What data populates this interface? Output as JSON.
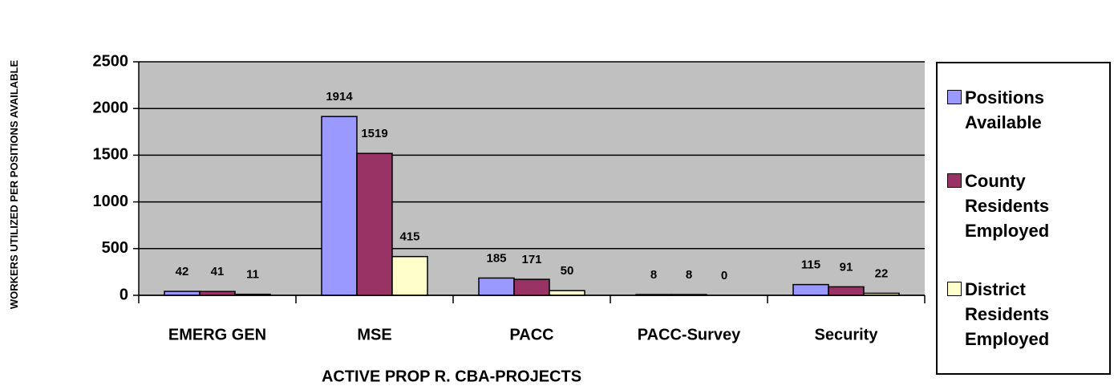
{
  "chart_data": {
    "type": "bar",
    "y_label": "WORKERS UTILIZED PER POSITIONS AVAILABLE",
    "x_label": "ACTIVE PROP R. CBA-PROJECTS",
    "categories": [
      "EMERG GEN",
      "MSE",
      "PACC",
      "PACC-Survey",
      "Security"
    ],
    "series": [
      {
        "name": "Positions Available",
        "color": "#9999ff",
        "values": [
          42,
          1914,
          185,
          8,
          115
        ]
      },
      {
        "name": "County Residents Employed",
        "color": "#993366",
        "values": [
          41,
          1519,
          171,
          8,
          91
        ]
      },
      {
        "name": "District Residents Employed",
        "color": "#ffffcc",
        "values": [
          11,
          415,
          50,
          0,
          22
        ]
      }
    ],
    "ylim": [
      0,
      2500
    ],
    "yticks": [
      0,
      500,
      1000,
      1500,
      2000,
      2500
    ],
    "grid": true,
    "plot_background": "#c0c0c0",
    "legend": "right"
  }
}
